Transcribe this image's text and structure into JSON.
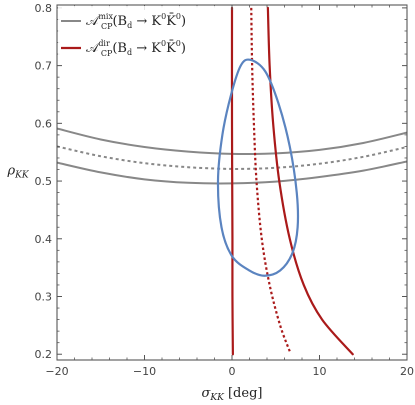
{
  "chart_data": {
    "type": "line",
    "x_label": {
      "main": "σ",
      "sub": "KK",
      "unit": " [deg]"
    },
    "y_label": {
      "main": "ρ",
      "sub": "KK"
    },
    "xlim": [
      -20,
      20
    ],
    "ylim": [
      0.19,
      0.805
    ],
    "x_ticks": [
      -20,
      -10,
      0,
      10,
      20
    ],
    "y_ticks": [
      0.2,
      0.3,
      0.4,
      0.5,
      0.6,
      0.7,
      0.8
    ],
    "x_tick_labels": [
      "−20",
      "−10",
      "0",
      "10",
      "20"
    ],
    "y_tick_labels": [
      "0.2",
      "0.3",
      "0.4",
      "0.5",
      "0.6",
      "0.7",
      "0.8"
    ],
    "grid": false,
    "legend": {
      "position": "top-left",
      "entries": [
        {
          "color": "#888888",
          "text": {
            "A": "𝒜",
            "sup": "mix",
            "sub": "CP",
            "body": "(B",
            "bsub": "d",
            "arrow": " → K",
            "k1sup": "0",
            "kbar": "K̄",
            "k2sup": "0",
            "close": ")"
          }
        },
        {
          "color": "#aa1a1a",
          "text": {
            "A": "𝒜",
            "sup": "dir",
            "sub": "CP",
            "body": "(B",
            "bsub": "d",
            "arrow": " → K",
            "k1sup": "0",
            "kbar": "K̄",
            "k2sup": "0",
            "close": ")"
          }
        }
      ]
    },
    "series": [
      {
        "group": "mix",
        "style": "solid",
        "color": "#888888",
        "width": 2,
        "points": [
          [
            -20,
            0.591
          ],
          [
            -15,
            0.572
          ],
          [
            -10,
            0.559
          ],
          [
            -5,
            0.551
          ],
          [
            0,
            0.547
          ],
          [
            5,
            0.548
          ],
          [
            10,
            0.554
          ],
          [
            15,
            0.566
          ],
          [
            20,
            0.584
          ]
        ]
      },
      {
        "group": "mix",
        "style": "dashed",
        "color": "#888888",
        "width": 2,
        "points": [
          [
            -20,
            0.56
          ],
          [
            -15,
            0.543
          ],
          [
            -10,
            0.531
          ],
          [
            -5,
            0.524
          ],
          [
            0,
            0.521
          ],
          [
            5,
            0.523
          ],
          [
            10,
            0.53
          ],
          [
            15,
            0.542
          ],
          [
            20,
            0.559
          ]
        ]
      },
      {
        "group": "mix",
        "style": "solid",
        "color": "#888888",
        "width": 2,
        "points": [
          [
            -20,
            0.532
          ],
          [
            -15,
            0.515
          ],
          [
            -10,
            0.503
          ],
          [
            -5,
            0.497
          ],
          [
            0,
            0.496
          ],
          [
            5,
            0.499
          ],
          [
            10,
            0.507
          ],
          [
            15,
            0.518
          ],
          [
            20,
            0.534
          ]
        ]
      },
      {
        "group": "dir",
        "style": "solid",
        "color": "#aa1a1a",
        "width": 2.2,
        "points": [
          [
            0.0,
            0.8
          ],
          [
            0.0,
            0.6
          ],
          [
            0.05,
            0.4
          ],
          [
            0.05,
            0.3
          ],
          [
            0.1,
            0.2
          ]
        ]
      },
      {
        "group": "dir",
        "style": "dotted",
        "color": "#aa1a1a",
        "width": 2.2,
        "points": [
          [
            2.2,
            0.8
          ],
          [
            2.3,
            0.7
          ],
          [
            2.5,
            0.6
          ],
          [
            2.8,
            0.5
          ],
          [
            3.4,
            0.4
          ],
          [
            4.3,
            0.32
          ],
          [
            5.5,
            0.25
          ],
          [
            6.6,
            0.205
          ]
        ]
      },
      {
        "group": "dir",
        "style": "solid",
        "color": "#aa1a1a",
        "width": 2.2,
        "points": [
          [
            4.1,
            0.8
          ],
          [
            4.3,
            0.7
          ],
          [
            4.7,
            0.6
          ],
          [
            5.4,
            0.5
          ],
          [
            6.6,
            0.4
          ],
          [
            8.2,
            0.32
          ],
          [
            10.3,
            0.26
          ],
          [
            13.8,
            0.2
          ]
        ]
      },
      {
        "group": "contour",
        "style": "solid",
        "color": "#5b84c0",
        "width": 2.2,
        "closed": true,
        "points": [
          [
            2.1,
            0.71
          ],
          [
            3.8,
            0.69
          ],
          [
            5.3,
            0.635
          ],
          [
            6.6,
            0.56
          ],
          [
            7.4,
            0.48
          ],
          [
            7.5,
            0.42
          ],
          [
            6.9,
            0.375
          ],
          [
            5.5,
            0.345
          ],
          [
            3.7,
            0.336
          ],
          [
            2.0,
            0.345
          ],
          [
            0.0,
            0.37
          ],
          [
            -1.2,
            0.42
          ],
          [
            -1.6,
            0.5
          ],
          [
            -1.1,
            0.58
          ],
          [
            -0.1,
            0.65
          ],
          [
            1.0,
            0.7
          ]
        ]
      }
    ]
  }
}
